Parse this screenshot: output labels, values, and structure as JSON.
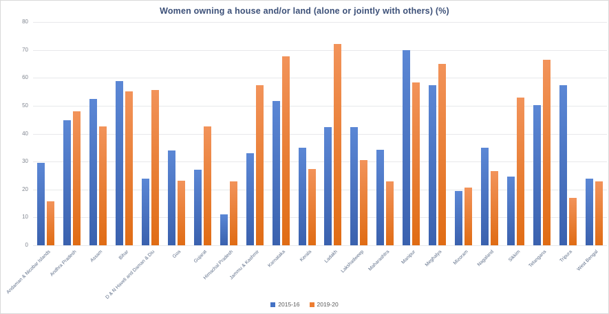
{
  "chart_data": {
    "type": "bar",
    "title": "Women owning a house and/or land (alone or jointly with others) (%)",
    "categories": [
      "Andaman & Nicobar Islands",
      "Andhra Pradesh",
      "Assam",
      "Bihar",
      "D & N Haveli and Daman & Diu",
      "Goa",
      "Gujarat",
      "Himachal Pradesh",
      "Jammu & Kashmir",
      "Karnataka",
      "Kerala",
      "Ladakh",
      "Lakshadweep",
      "Maharashtra",
      "Manipur",
      "Meghalya",
      "Mizoram",
      "Nagaland",
      "Sikkim",
      "Telangana",
      "Tripura",
      "West Bengal"
    ],
    "series": [
      {
        "name": "2015-16",
        "color": "#4472C4",
        "color_top": "#5b87d5",
        "color_bottom": "#3a61ae",
        "values": [
          29.6,
          44.7,
          52.4,
          58.8,
          23.8,
          33.9,
          27.1,
          11.2,
          33.0,
          51.8,
          34.9,
          42.4,
          42.4,
          34.2,
          69.9,
          57.3,
          19.4,
          34.9,
          24.7,
          50.3,
          57.3,
          23.8
        ]
      },
      {
        "name": "2019-20",
        "color": "#ED7D31",
        "color_top": "#f2935a",
        "color_bottom": "#e06c14",
        "values": [
          15.8,
          47.9,
          42.7,
          55.2,
          55.7,
          23.2,
          42.5,
          23.0,
          57.4,
          67.6,
          27.3,
          72.2,
          30.6,
          22.9,
          58.4,
          64.9,
          20.6,
          26.6,
          52.9,
          66.5,
          17.1,
          23.0
        ]
      }
    ],
    "ylim": [
      0,
      80
    ],
    "yticks": [
      0,
      10,
      20,
      30,
      40,
      50,
      60,
      70,
      80
    ],
    "grid": true,
    "legend_position": "bottom",
    "title_color": "#3c5078",
    "gridline_color": "#e7e8ea",
    "ytick_color": "#808690",
    "xlabel_color": "#5e6e88"
  }
}
